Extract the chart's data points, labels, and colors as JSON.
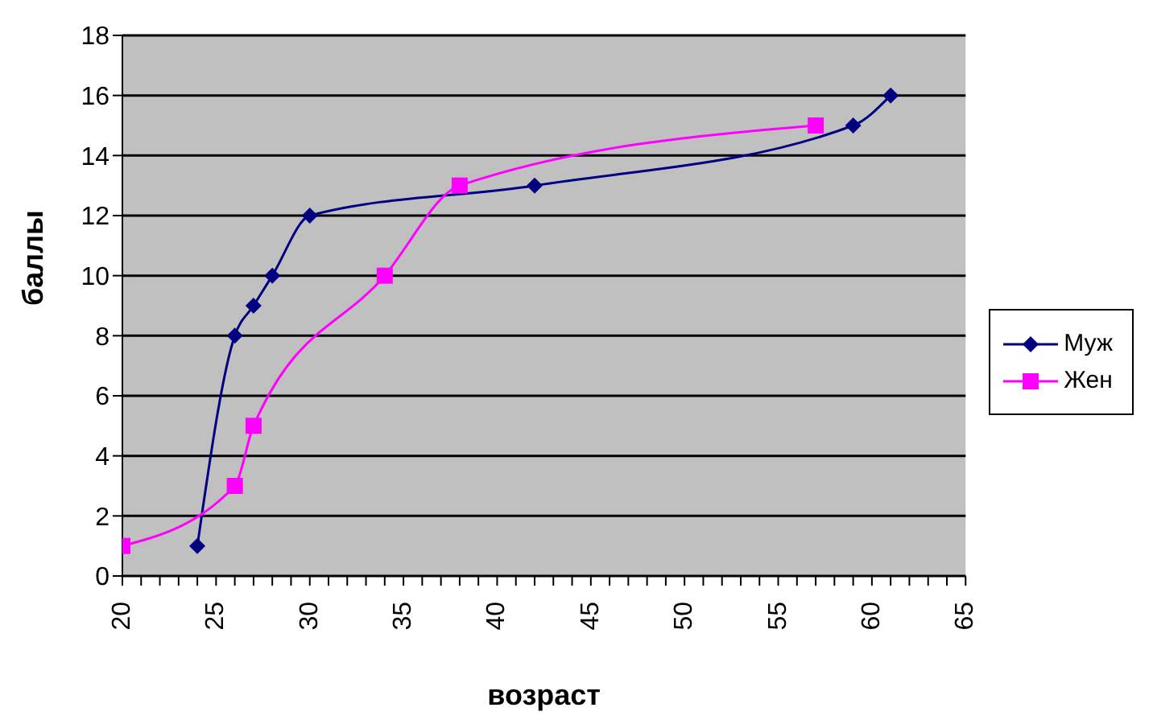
{
  "chart_data": {
    "type": "line",
    "xlabel": "возраст",
    "ylabel": "баллы",
    "series": [
      {
        "name": "Муж",
        "color": "#000080",
        "marker": "diamond",
        "x": [
          24,
          26,
          27,
          28,
          30,
          42,
          59,
          61
        ],
        "values": [
          1,
          8,
          9,
          10,
          12,
          13,
          15,
          16
        ]
      },
      {
        "name": "Жен",
        "color": "#ff00ff",
        "marker": "square",
        "x": [
          20,
          26,
          27,
          34,
          38,
          57
        ],
        "values": [
          1,
          3,
          5,
          10,
          13,
          15
        ]
      }
    ],
    "xlim": [
      20,
      65
    ],
    "xticks": [
      20,
      {
        "value": 21,
        "label": null
      },
      {
        "value": 22,
        "label": null
      },
      {
        "value": 23,
        "label": null
      },
      {
        "value": 24,
        "label": null
      },
      25,
      {
        "value": 26,
        "label": null
      },
      {
        "value": 27,
        "label": null
      },
      {
        "value": 28,
        "label": null
      },
      {
        "value": 29,
        "label": null
      },
      30,
      {
        "value": 31,
        "label": null
      },
      {
        "value": 32,
        "label": null
      },
      {
        "value": 33,
        "label": null
      },
      {
        "value": 34,
        "label": null
      },
      35,
      {
        "value": 36,
        "label": null
      },
      {
        "value": 37,
        "label": null
      },
      {
        "value": 38,
        "label": null
      },
      {
        "value": 39,
        "label": null
      },
      40,
      {
        "value": 41,
        "label": null
      },
      {
        "value": 42,
        "label": null
      },
      {
        "value": 43,
        "label": null
      },
      {
        "value": 44,
        "label": null
      },
      45,
      {
        "value": 46,
        "label": null
      },
      {
        "value": 47,
        "label": null
      },
      {
        "value": 48,
        "label": null
      },
      {
        "value": 49,
        "label": null
      },
      50,
      {
        "value": 51,
        "label": null
      },
      {
        "value": 52,
        "label": null
      },
      {
        "value": 53,
        "label": null
      },
      {
        "value": 54,
        "label": null
      },
      55,
      {
        "value": 56,
        "label": null
      },
      {
        "value": 57,
        "label": null
      },
      {
        "value": 58,
        "label": null
      },
      {
        "value": 59,
        "label": null
      },
      60,
      {
        "value": 61,
        "label": null
      },
      {
        "value": 62,
        "label": null
      },
      {
        "value": 63,
        "label": null
      },
      {
        "value": 64,
        "label": null
      },
      65
    ],
    "ylim": [
      0,
      18
    ],
    "yticks": [
      0,
      2,
      4,
      6,
      8,
      10,
      12,
      14,
      16,
      18
    ],
    "grid": "y",
    "legend": "right",
    "line_style": "solid"
  }
}
